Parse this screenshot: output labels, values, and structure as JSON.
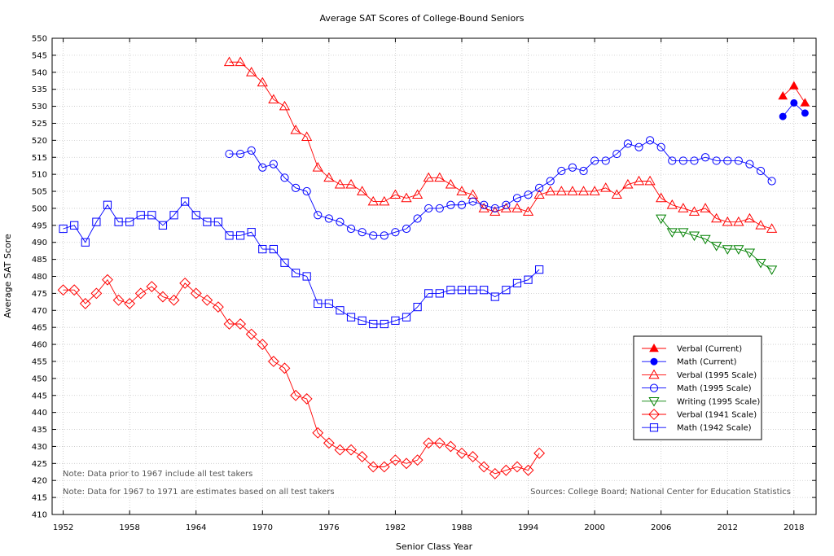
{
  "chart_data": {
    "type": "line",
    "title": "Average SAT Scores of College-Bound Seniors",
    "xlabel": "Senior Class Year",
    "ylabel": "Average SAT Score",
    "xlim": [
      1951,
      2020
    ],
    "ylim": [
      410,
      550
    ],
    "x_ticks": [
      1952,
      1958,
      1964,
      1970,
      1976,
      1982,
      1988,
      1994,
      2000,
      2006,
      2012,
      2018
    ],
    "y_ticks": [
      410,
      415,
      420,
      425,
      430,
      435,
      440,
      445,
      450,
      455,
      460,
      465,
      470,
      475,
      480,
      485,
      490,
      495,
      500,
      505,
      510,
      515,
      520,
      525,
      530,
      535,
      540,
      545,
      550
    ],
    "grid": true,
    "legend_position": "lower-right",
    "notes": [
      "Note: Data prior to 1967 include all test takers",
      "Note: Data for 1967 to 1971 are estimates based on all test takers"
    ],
    "source": "Sources: College Board; National Center for Education Statistics",
    "series": [
      {
        "name": "Verbal (Current)",
        "color": "#ff0000",
        "marker": "triangle-up",
        "filled": true,
        "x": [
          2017,
          2018,
          2019
        ],
        "values": [
          533,
          536,
          531
        ]
      },
      {
        "name": "Math (Current)",
        "color": "#0000ff",
        "marker": "circle",
        "filled": true,
        "x": [
          2017,
          2018,
          2019
        ],
        "values": [
          527,
          531,
          528
        ]
      },
      {
        "name": "Verbal (1995 Scale)",
        "color": "#ff0000",
        "marker": "triangle-up",
        "filled": false,
        "x": [
          1967,
          1968,
          1969,
          1970,
          1971,
          1972,
          1973,
          1974,
          1975,
          1976,
          1977,
          1978,
          1979,
          1980,
          1981,
          1982,
          1983,
          1984,
          1985,
          1986,
          1987,
          1988,
          1989,
          1990,
          1991,
          1992,
          1993,
          1994,
          1995,
          1996,
          1997,
          1998,
          1999,
          2000,
          2001,
          2002,
          2003,
          2004,
          2005,
          2006,
          2007,
          2008,
          2009,
          2010,
          2011,
          2012,
          2013,
          2014,
          2015,
          2016
        ],
        "values": [
          543,
          543,
          540,
          537,
          532,
          530,
          523,
          521,
          512,
          509,
          507,
          507,
          505,
          502,
          502,
          504,
          503,
          504,
          509,
          509,
          507,
          505,
          504,
          500,
          499,
          500,
          500,
          499,
          504,
          505,
          505,
          505,
          505,
          505,
          506,
          504,
          507,
          508,
          508,
          503,
          501,
          500,
          499,
          500,
          497,
          496,
          496,
          497,
          495,
          494
        ]
      },
      {
        "name": "Math (1995 Scale)",
        "color": "#0000ff",
        "marker": "circle",
        "filled": false,
        "x": [
          1967,
          1968,
          1969,
          1970,
          1971,
          1972,
          1973,
          1974,
          1975,
          1976,
          1977,
          1978,
          1979,
          1980,
          1981,
          1982,
          1983,
          1984,
          1985,
          1986,
          1987,
          1988,
          1989,
          1990,
          1991,
          1992,
          1993,
          1994,
          1995,
          1996,
          1997,
          1998,
          1999,
          2000,
          2001,
          2002,
          2003,
          2004,
          2005,
          2006,
          2007,
          2008,
          2009,
          2010,
          2011,
          2012,
          2013,
          2014,
          2015,
          2016
        ],
        "values": [
          516,
          516,
          517,
          512,
          513,
          509,
          506,
          505,
          498,
          497,
          496,
          494,
          493,
          492,
          492,
          493,
          494,
          497,
          500,
          500,
          501,
          501,
          502,
          501,
          500,
          501,
          503,
          504,
          506,
          508,
          511,
          512,
          511,
          514,
          514,
          516,
          519,
          518,
          520,
          518,
          514,
          514,
          514,
          515,
          514,
          514,
          514,
          513,
          511,
          508
        ]
      },
      {
        "name": "Writing (1995 Scale)",
        "color": "#008000",
        "marker": "triangle-down",
        "filled": false,
        "x": [
          2006,
          2007,
          2008,
          2009,
          2010,
          2011,
          2012,
          2013,
          2014,
          2015,
          2016
        ],
        "values": [
          497,
          493,
          493,
          492,
          491,
          489,
          488,
          488,
          487,
          484,
          482
        ]
      },
      {
        "name": "Verbal (1941 Scale)",
        "color": "#ff0000",
        "marker": "diamond",
        "filled": false,
        "x": [
          1952,
          1953,
          1954,
          1955,
          1956,
          1957,
          1958,
          1959,
          1960,
          1961,
          1962,
          1963,
          1964,
          1965,
          1966,
          1967,
          1968,
          1969,
          1970,
          1971,
          1972,
          1973,
          1974,
          1975,
          1976,
          1977,
          1978,
          1979,
          1980,
          1981,
          1982,
          1983,
          1984,
          1985,
          1986,
          1987,
          1988,
          1989,
          1990,
          1991,
          1992,
          1993,
          1994,
          1995
        ],
        "values": [
          476,
          476,
          472,
          475,
          479,
          473,
          472,
          475,
          477,
          474,
          473,
          478,
          475,
          473,
          471,
          466,
          466,
          463,
          460,
          455,
          453,
          445,
          444,
          434,
          431,
          429,
          429,
          427,
          424,
          424,
          426,
          425,
          426,
          431,
          431,
          430,
          428,
          427,
          424,
          422,
          423,
          424,
          423,
          428
        ]
      },
      {
        "name": "Math (1942 Scale)",
        "color": "#0000ff",
        "marker": "square",
        "filled": false,
        "x": [
          1952,
          1953,
          1954,
          1955,
          1956,
          1957,
          1958,
          1959,
          1960,
          1961,
          1962,
          1963,
          1964,
          1965,
          1966,
          1967,
          1968,
          1969,
          1970,
          1971,
          1972,
          1973,
          1974,
          1975,
          1976,
          1977,
          1978,
          1979,
          1980,
          1981,
          1982,
          1983,
          1984,
          1985,
          1986,
          1987,
          1988,
          1989,
          1990,
          1991,
          1992,
          1993,
          1994,
          1995
        ],
        "values": [
          494,
          495,
          490,
          496,
          501,
          496,
          496,
          498,
          498,
          495,
          498,
          502,
          498,
          496,
          496,
          492,
          492,
          493,
          488,
          488,
          484,
          481,
          480,
          472,
          472,
          470,
          468,
          467,
          466,
          466,
          467,
          468,
          471,
          475,
          475,
          476,
          476,
          476,
          476,
          474,
          476,
          478,
          479,
          482
        ]
      }
    ]
  }
}
